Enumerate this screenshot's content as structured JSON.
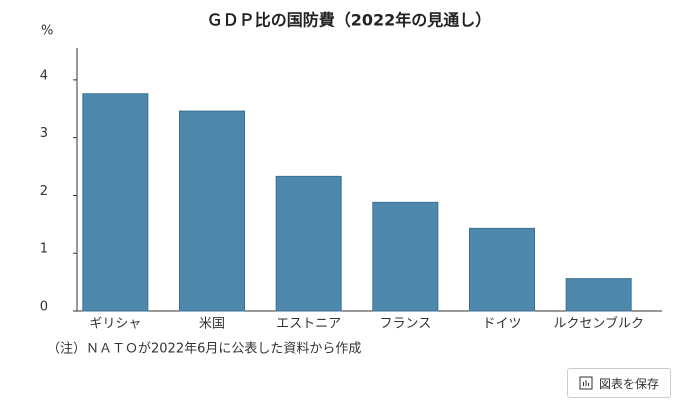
{
  "chart_data": {
    "type": "bar",
    "title": "ＧＤＰ比の国防費（2022年の見通し）",
    "y_unit": "%",
    "categories": [
      "ギリシャ",
      "米国",
      "エストニア",
      "フランス",
      "ドイツ",
      "ルクセンブルク"
    ],
    "values": [
      3.76,
      3.46,
      2.33,
      1.88,
      1.43,
      0.56
    ],
    "color": "#4f88ad",
    "ylim": [
      0,
      4.5
    ],
    "yticks": [
      0,
      1,
      2,
      3,
      4
    ],
    "note": "（注）ＮＡＴＯが2022年6月に公表した資料から作成"
  },
  "ui": {
    "save_button": "図表を保存"
  }
}
